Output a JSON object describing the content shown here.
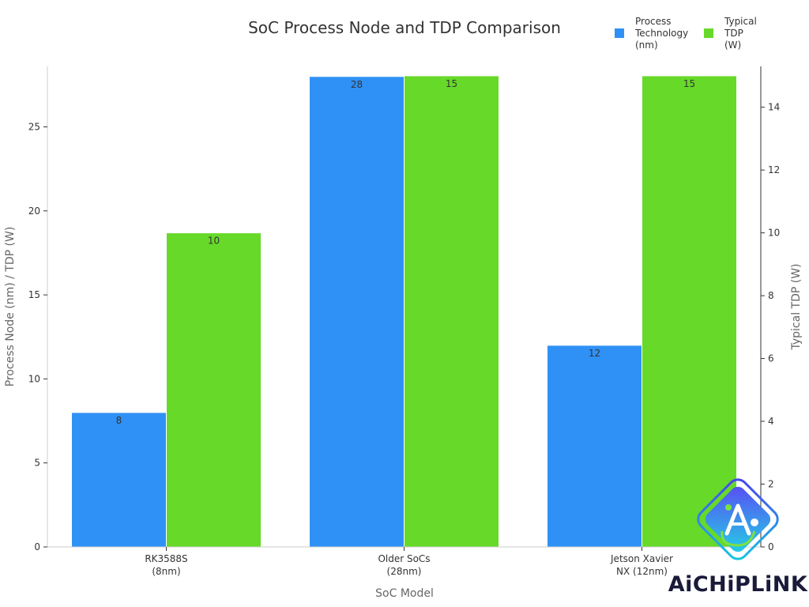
{
  "chart_data": {
    "type": "bar",
    "title": "SoC Process Node and TDP Comparison",
    "categories": [
      "RK3588S\n(8nm)",
      "Older SoCs\n(28nm)",
      "Jetson Xavier\nNX (12nm)"
    ],
    "xlabel": "SoC Model",
    "ylabel": "Process Node (nm) / TDP (W)",
    "y2label": "Typical TDP (W)",
    "ylim": [
      0,
      28.6
    ],
    "y2lim": [
      0,
      15.3
    ],
    "yticks": [
      0,
      5,
      10,
      15,
      20,
      25
    ],
    "y2ticks": [
      0,
      2,
      4,
      6,
      8,
      10,
      12,
      14
    ],
    "series": [
      {
        "name": "Process\nTechnology\n(nm)",
        "axis": "left",
        "color": "#2f91f6",
        "values": [
          8,
          28,
          12
        ]
      },
      {
        "name": "Typical\nTDP\n(W)",
        "axis": "right",
        "color": "#66d929",
        "values": [
          10,
          15,
          15
        ]
      }
    ],
    "legend_position": "top-right",
    "grid": false
  },
  "logo": {
    "text": "AiCHiPLiNK"
  }
}
